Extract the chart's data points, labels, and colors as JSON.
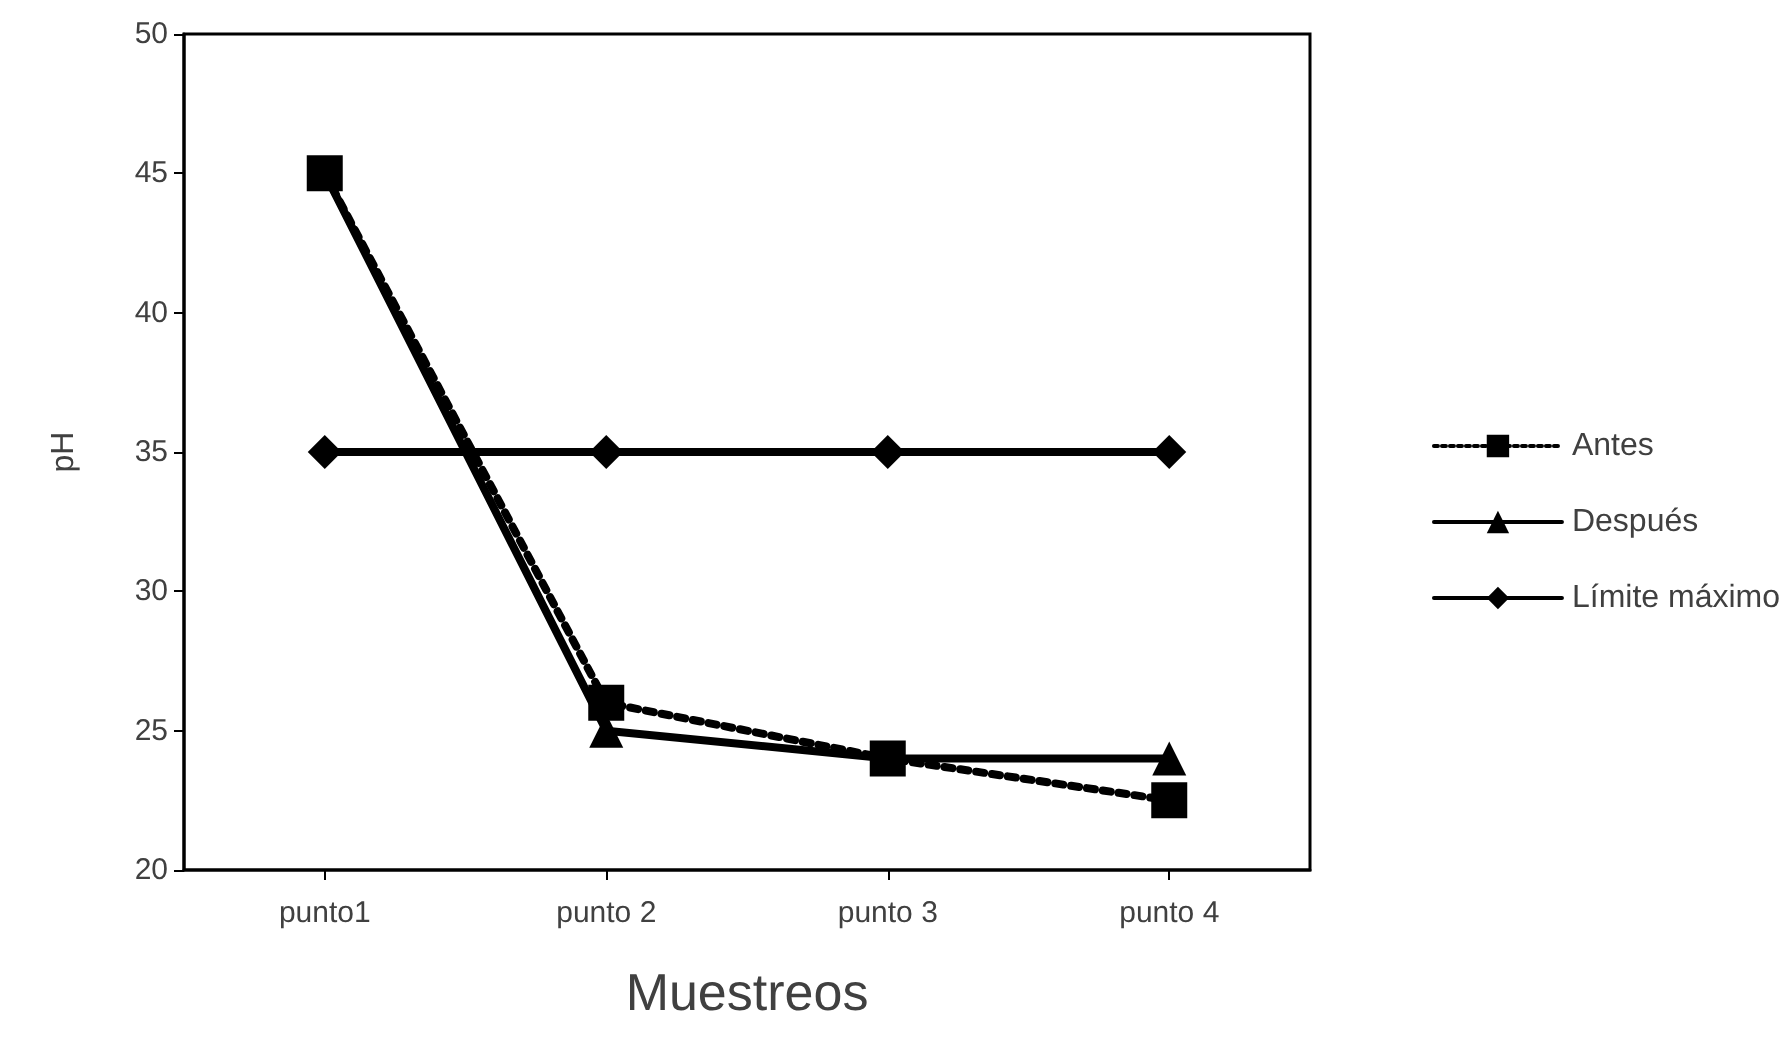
{
  "chart_data": {
    "type": "line",
    "xlabel": "Muestreos",
    "ylabel": "pH",
    "categories": [
      "punto1",
      "punto 2",
      "punto 3",
      "punto 4"
    ],
    "series": [
      {
        "name": "Antes",
        "color": "#000000",
        "values": [
          45,
          26,
          24,
          22.5
        ],
        "marker": "square",
        "line_style": "dotted"
      },
      {
        "name": "Después",
        "color": "#000000",
        "values": [
          45,
          25,
          24,
          24
        ],
        "marker": "triangle",
        "line_style": "solid"
      },
      {
        "name": "Límite máximo",
        "color": "#000000",
        "values": [
          35,
          35,
          35,
          35
        ],
        "marker": "diamond",
        "line_style": "solid"
      }
    ],
    "ylim": [
      20,
      50
    ],
    "yticks": [
      20,
      25,
      30,
      35,
      40,
      45,
      50
    ],
    "grid": false,
    "legend": "right"
  }
}
